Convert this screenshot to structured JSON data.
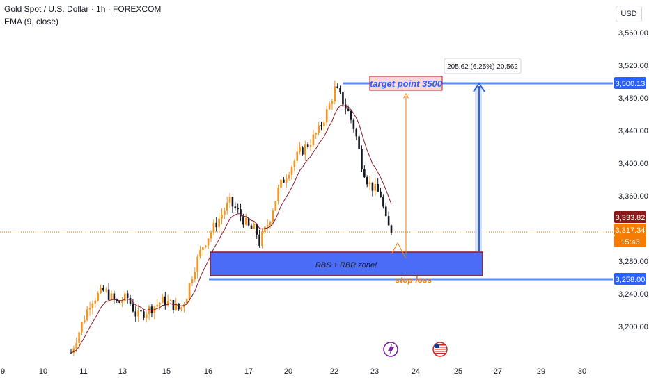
{
  "header": {
    "symbol": "Gold Spot / U.S. Dollar · 1h · FOREXCOM",
    "indicator": "EMA (9, close)",
    "currency": "USD"
  },
  "chart_data": {
    "type": "candlestick",
    "y_ticks": [
      3200,
      3240,
      3280,
      3360,
      3400,
      3440,
      3480,
      3520,
      3560
    ],
    "ylim": [
      3172,
      3588
    ],
    "x_ticks": [
      "9",
      "10",
      "11",
      "13",
      "15",
      "16",
      "17",
      "20",
      "22",
      "23",
      "24",
      "25",
      "27",
      "29",
      "30"
    ],
    "price_path": [
      [
        0,
        3168
      ],
      [
        3,
        3200
      ],
      [
        6,
        3232
      ],
      [
        10,
        3244
      ],
      [
        14,
        3228
      ],
      [
        17,
        3236
      ],
      [
        20,
        3212
      ],
      [
        24,
        3222
      ],
      [
        28,
        3232
      ],
      [
        31,
        3226
      ],
      [
        33,
        3220
      ],
      [
        35,
        3238
      ],
      [
        37,
        3268
      ],
      [
        40,
        3300
      ],
      [
        43,
        3320
      ],
      [
        46,
        3340
      ],
      [
        48,
        3352
      ],
      [
        51,
        3338
      ],
      [
        54,
        3320
      ],
      [
        56,
        3318
      ],
      [
        57,
        3302
      ],
      [
        60,
        3330
      ],
      [
        63,
        3370
      ],
      [
        66,
        3392
      ],
      [
        69,
        3412
      ],
      [
        72,
        3424
      ],
      [
        75,
        3440
      ],
      [
        78,
        3468
      ],
      [
        80,
        3492
      ],
      [
        82,
        3478
      ],
      [
        84,
        3462
      ],
      [
        86,
        3440
      ],
      [
        88,
        3400
      ],
      [
        90,
        3376
      ],
      [
        92,
        3368
      ],
      [
        94,
        3360
      ],
      [
        95,
        3333
      ],
      [
        96,
        3322
      ],
      [
        97,
        3318
      ]
    ],
    "series": [
      {
        "name": "EMA (9, close)",
        "color": "#8b1a2b"
      }
    ],
    "price_labels": [
      {
        "value": "3,500.13",
        "color": "#2962ff"
      },
      {
        "value": "3,333.82",
        "color": "#8b1a1a"
      },
      {
        "value": "3,317.34",
        "color": "#f57c00"
      },
      {
        "value": "15:43",
        "color": "#f57c00"
      },
      {
        "value": "3,258.00",
        "color": "#2962ff"
      }
    ],
    "zone": {
      "label": "RBS + RBR zone!",
      "top": 3292,
      "bottom": 3262
    },
    "target": {
      "label": "target point 3500",
      "price": 3500.13
    },
    "stop": {
      "label": "stop loss",
      "price": 3258.0
    },
    "measure": {
      "label": "205.62 (6.25%) 20,562"
    },
    "last_price": 3317.34
  },
  "colors": {
    "up": "#f7941d",
    "down": "#131722",
    "accent": "#2962ff"
  },
  "icons": [
    "flash-icon",
    "us-flag-icon"
  ]
}
